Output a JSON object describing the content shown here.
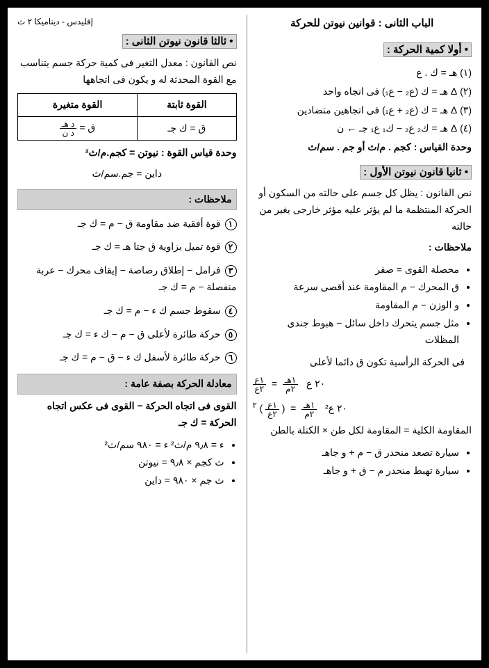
{
  "header_right": "الباب الثانى :   قوانين نيوتن للحركة",
  "header_left": "إقليدس - ديناميكا ٢ ث",
  "sec1": {
    "title": "• أولا كمية الحركة :",
    "items": [
      "(١) هـ = ك . ع",
      "(٢) Δ هـ = ك (ع₂ − ع₁)   فى اتجاه واحد",
      "(٣) Δ هـ = ك (ع₂ + ع₁)   فى اتجاهين متضادين",
      " (٤) Δ هـ = ك₂ ع₂ − ك₁ ع₁   جـ  ← ن",
      "وحدة القياس : كجم . م/ث أو جم . سم/ث"
    ]
  },
  "sec2": {
    "title": "• ثانيا قانون نيوتن الأول :",
    "law": "نص القانون : يظل كل جسم على حالته من السكون أو الحركة المنتظمة ما لم يؤثر عليه مؤثر خارجى يغير من حالته",
    "notes_label": "ملاحظات :",
    "bullets": [
      "محصلة القوى = صفر",
      "ق المحرك − م المقاومة عند أقصى سرعة",
      "و الوزن − م المقاومة",
      "مثل جسم يتحرك داخل سائل − هبوط جندى المظلات"
    ],
    "line_vert": "فى الحركة الرأسية تكون ق دائما لأعلى",
    "eq1_parts": {
      "lhs": "٢٠ ع",
      "a": "١هـ",
      "b": "٢م",
      "c": "١ع",
      "d": "٢ع"
    },
    "eq2_parts": {
      "lhs": "٢٠ ع²",
      "a": "١هـ",
      "b": "٢م",
      "c": "١ع",
      "d": "٢ع",
      "exp": "٢"
    },
    "res_line": "المقاومة الكلية = المقاومة لكل طن × الكتلة بالطن",
    "car_up": "سيارة تصعد منحدر  ق − م + و جاهـ",
    "car_dn": "سيارة تهبط منحدر  م − ق + و جاهـ"
  },
  "sec3": {
    "title": "• ثالثا قانون نيوتن الثانى :",
    "law": "نص القانون : معدل التغير فى كمية حركة جسم يتناسب مع القوة المحدثة له و يكون فى اتجاهها",
    "table": {
      "h1": "القوة ثابتة",
      "h2": "القوة متغيرة",
      "c1": "ق = ك جـ",
      "c2a": {
        "lhs": "ق =",
        "n": "د هـ",
        "d": "د ن"
      }
    },
    "unit": "وحدة قياس القوة : نيوتن = كجم.م/ث²",
    "unit2": "داين = جم.سم/ث"
  },
  "notes_bar": "ملاحظات :",
  "cases": [
    "قوة أفقية ضد مقاومة  ق − م = ك جـ",
    "قوة تميل بزاوية   ق جتا هـ = ك جـ",
    "فرامل − إطلاق رصاصة − إيقاف محرك − عربة منفصلة  − م = ك جـ",
    "سقوط جسم   ك ء − م = ك جـ",
    "حركة طائرة لأعلى  ق − م − ك ء = ك جـ",
    "حركة طائرة لأسفل  ك ء − ق − م = ك جـ"
  ],
  "gen_bar": "معادلة الحركة بصفة عامة :",
  "gen_line": "القوى فى اتجاه الحركة − القوى فى عكس اتجاه الحركة = ك جـ",
  "conv": [
    "ء = ٩٫٨ م/ث²   ء = ٩٨٠ سم/ث²",
    "ث كجم × ٩٫٨ = نيوتن",
    "ث جم × ٩٨٠ = داين"
  ]
}
